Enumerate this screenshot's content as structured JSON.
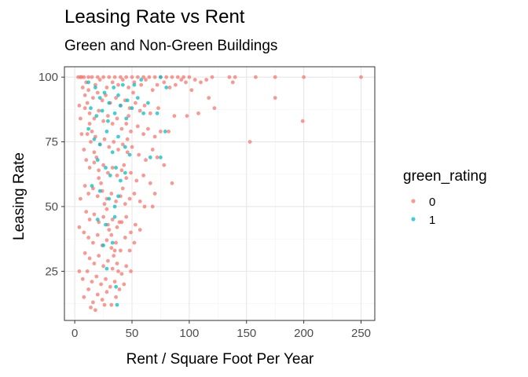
{
  "chart_data": {
    "type": "scatter",
    "title": "Leasing Rate vs Rent",
    "subtitle": "Green and Non-Green Buildings",
    "xlabel": "Rent / Square Foot Per Year",
    "ylabel": "Leasing Rate",
    "xlim": [
      -9,
      262
    ],
    "ylim": [
      6,
      104
    ],
    "xticks": [
      0,
      50,
      100,
      150,
      200,
      250
    ],
    "yticks": [
      25,
      50,
      75,
      100
    ],
    "grid": true,
    "legend": {
      "title": "green_rating",
      "position": "right"
    },
    "series": [
      {
        "name": "0",
        "color": "#F8766D",
        "points": [
          [
            3,
            100
          ],
          [
            5,
            100
          ],
          [
            8,
            100
          ],
          [
            12,
            100
          ],
          [
            15,
            100
          ],
          [
            20,
            100
          ],
          [
            25,
            100
          ],
          [
            30,
            100
          ],
          [
            35,
            100
          ],
          [
            40,
            100
          ],
          [
            45,
            100
          ],
          [
            50,
            100
          ],
          [
            55,
            100
          ],
          [
            60,
            100
          ],
          [
            65,
            100
          ],
          [
            70,
            100
          ],
          [
            75,
            100
          ],
          [
            80,
            100
          ],
          [
            85,
            100
          ],
          [
            90,
            100
          ],
          [
            95,
            100
          ],
          [
            100,
            100
          ],
          [
            105,
            99
          ],
          [
            110,
            98
          ],
          [
            115,
            99
          ],
          [
            120,
            100
          ],
          [
            135,
            100
          ],
          [
            140,
            100
          ],
          [
            158,
            100
          ],
          [
            175,
            100
          ],
          [
            200,
            100
          ],
          [
            250,
            100
          ],
          [
            10,
            98
          ],
          [
            18,
            97
          ],
          [
            22,
            99
          ],
          [
            28,
            96
          ],
          [
            33,
            98
          ],
          [
            38,
            97
          ],
          [
            42,
            99
          ],
          [
            47,
            96
          ],
          [
            52,
            98
          ],
          [
            58,
            97
          ],
          [
            62,
            99
          ],
          [
            68,
            95
          ],
          [
            72,
            97
          ],
          [
            78,
            98
          ],
          [
            83,
            96
          ],
          [
            88,
            97
          ],
          [
            93,
            99
          ],
          [
            97,
            98
          ],
          [
            102,
            95
          ],
          [
            138,
            98
          ],
          [
            175,
            92
          ],
          [
            199,
            83
          ],
          [
            153,
            75
          ],
          [
            12,
            95
          ],
          [
            16,
            92
          ],
          [
            20,
            94
          ],
          [
            24,
            91
          ],
          [
            27,
            93
          ],
          [
            31,
            90
          ],
          [
            36,
            92
          ],
          [
            40,
            89
          ],
          [
            44,
            91
          ],
          [
            48,
            88
          ],
          [
            53,
            90
          ],
          [
            57,
            87
          ],
          [
            61,
            89
          ],
          [
            66,
            86
          ],
          [
            73,
            88
          ],
          [
            87,
            85
          ],
          [
            98,
            85
          ],
          [
            108,
            86
          ],
          [
            122,
            88
          ],
          [
            117,
            92
          ],
          [
            9,
            88
          ],
          [
            13,
            86
          ],
          [
            17,
            84
          ],
          [
            21,
            87
          ],
          [
            25,
            83
          ],
          [
            29,
            85
          ],
          [
            33,
            82
          ],
          [
            37,
            84
          ],
          [
            41,
            80
          ],
          [
            45,
            82
          ],
          [
            49,
            79
          ],
          [
            55,
            81
          ],
          [
            60,
            78
          ],
          [
            64,
            80
          ],
          [
            70,
            77
          ],
          [
            75,
            79
          ],
          [
            82,
            79
          ],
          [
            11,
            78
          ],
          [
            14,
            75
          ],
          [
            18,
            77
          ],
          [
            22,
            74
          ],
          [
            26,
            76
          ],
          [
            30,
            73
          ],
          [
            34,
            75
          ],
          [
            38,
            72
          ],
          [
            42,
            74
          ],
          [
            46,
            71
          ],
          [
            50,
            73
          ],
          [
            56,
            70
          ],
          [
            62,
            68
          ],
          [
            68,
            72
          ],
          [
            72,
            69
          ],
          [
            78,
            66
          ],
          [
            10,
            68
          ],
          [
            13,
            65
          ],
          [
            17,
            67
          ],
          [
            21,
            64
          ],
          [
            25,
            66
          ],
          [
            29,
            63
          ],
          [
            33,
            65
          ],
          [
            37,
            62
          ],
          [
            41,
            64
          ],
          [
            45,
            61
          ],
          [
            49,
            63
          ],
          [
            54,
            60
          ],
          [
            60,
            62
          ],
          [
            66,
            59
          ],
          [
            85,
            59
          ],
          [
            9,
            58
          ],
          [
            12,
            55
          ],
          [
            16,
            57
          ],
          [
            20,
            54
          ],
          [
            24,
            56
          ],
          [
            28,
            53
          ],
          [
            32,
            55
          ],
          [
            36,
            52
          ],
          [
            40,
            54
          ],
          [
            44,
            51
          ],
          [
            48,
            53
          ],
          [
            52,
            55
          ],
          [
            57,
            52
          ],
          [
            61,
            50
          ],
          [
            68,
            50
          ],
          [
            70,
            55
          ],
          [
            10,
            48
          ],
          [
            13,
            45
          ],
          [
            17,
            47
          ],
          [
            21,
            44
          ],
          [
            25,
            46
          ],
          [
            29,
            43
          ],
          [
            33,
            45
          ],
          [
            37,
            42
          ],
          [
            41,
            44
          ],
          [
            45,
            46
          ],
          [
            49,
            40
          ],
          [
            53,
            43
          ],
          [
            57,
            41
          ],
          [
            8,
            40
          ],
          [
            12,
            38
          ],
          [
            16,
            36
          ],
          [
            20,
            39
          ],
          [
            24,
            35
          ],
          [
            28,
            37
          ],
          [
            32,
            34
          ],
          [
            36,
            36
          ],
          [
            40,
            33
          ],
          [
            44,
            38
          ],
          [
            48,
            33
          ],
          [
            52,
            36
          ],
          [
            9,
            32
          ],
          [
            13,
            30
          ],
          [
            17,
            28
          ],
          [
            21,
            31
          ],
          [
            25,
            27
          ],
          [
            29,
            29
          ],
          [
            33,
            26
          ],
          [
            37,
            28
          ],
          [
            41,
            24
          ],
          [
            45,
            27
          ],
          [
            49,
            25
          ],
          [
            7,
            22
          ],
          [
            11,
            25
          ],
          [
            15,
            21
          ],
          [
            19,
            23
          ],
          [
            23,
            20
          ],
          [
            27,
            22
          ],
          [
            31,
            19
          ],
          [
            35,
            21
          ],
          [
            39,
            18
          ],
          [
            43,
            20
          ],
          [
            8,
            15
          ],
          [
            12,
            18
          ],
          [
            16,
            13
          ],
          [
            20,
            16
          ],
          [
            24,
            14
          ],
          [
            28,
            17
          ],
          [
            32,
            12
          ],
          [
            36,
            15
          ],
          [
            14,
            11
          ],
          [
            18,
            10
          ],
          [
            26,
            12
          ],
          [
            6,
            100
          ],
          [
            7,
            96
          ],
          [
            9,
            93
          ],
          [
            11,
            90
          ],
          [
            13,
            82
          ],
          [
            15,
            79
          ],
          [
            17,
            71
          ],
          [
            19,
            69
          ],
          [
            21,
            61
          ],
          [
            23,
            59
          ],
          [
            26,
            51
          ],
          [
            28,
            49
          ],
          [
            30,
            41
          ],
          [
            32,
            39
          ],
          [
            34,
            31
          ],
          [
            35,
            33
          ],
          [
            38,
            25
          ],
          [
            39,
            44
          ],
          [
            42,
            57
          ],
          [
            43,
            66
          ],
          [
            46,
            76
          ],
          [
            47,
            85
          ],
          [
            51,
            94
          ],
          [
            5,
            84
          ],
          [
            4,
            89
          ],
          [
            6,
            78
          ],
          [
            8,
            72
          ],
          [
            5,
            53
          ],
          [
            4,
            42
          ],
          [
            4,
            25
          ]
        ]
      },
      {
        "name": "1",
        "color": "#00BFC4",
        "points": [
          [
            12,
            98
          ],
          [
            18,
            96
          ],
          [
            22,
            92
          ],
          [
            26,
            94
          ],
          [
            30,
            90
          ],
          [
            34,
            96
          ],
          [
            38,
            93
          ],
          [
            42,
            97
          ],
          [
            46,
            91
          ],
          [
            52,
            97
          ],
          [
            58,
            99
          ],
          [
            75,
            100
          ],
          [
            80,
            96
          ],
          [
            14,
            88
          ],
          [
            19,
            85
          ],
          [
            24,
            87
          ],
          [
            29,
            83
          ],
          [
            35,
            86
          ],
          [
            40,
            89
          ],
          [
            45,
            84
          ],
          [
            50,
            88
          ],
          [
            55,
            92
          ],
          [
            60,
            86
          ],
          [
            64,
            90
          ],
          [
            72,
            86
          ],
          [
            79,
            79
          ],
          [
            12,
            80
          ],
          [
            17,
            76
          ],
          [
            22,
            74
          ],
          [
            28,
            79
          ],
          [
            33,
            71
          ],
          [
            38,
            77
          ],
          [
            44,
            73
          ],
          [
            48,
            70
          ],
          [
            66,
            69
          ],
          [
            75,
            69
          ],
          [
            20,
            68
          ],
          [
            27,
            65
          ],
          [
            31,
            62
          ],
          [
            36,
            65
          ],
          [
            40,
            60
          ],
          [
            44,
            63
          ],
          [
            15,
            58
          ],
          [
            22,
            56
          ],
          [
            30,
            53
          ],
          [
            35,
            50
          ],
          [
            38,
            54
          ],
          [
            20,
            45
          ],
          [
            27,
            43
          ],
          [
            35,
            46
          ],
          [
            25,
            35
          ],
          [
            33,
            36
          ],
          [
            28,
            26
          ],
          [
            37,
            12
          ],
          [
            36,
            19
          ]
        ]
      }
    ]
  }
}
